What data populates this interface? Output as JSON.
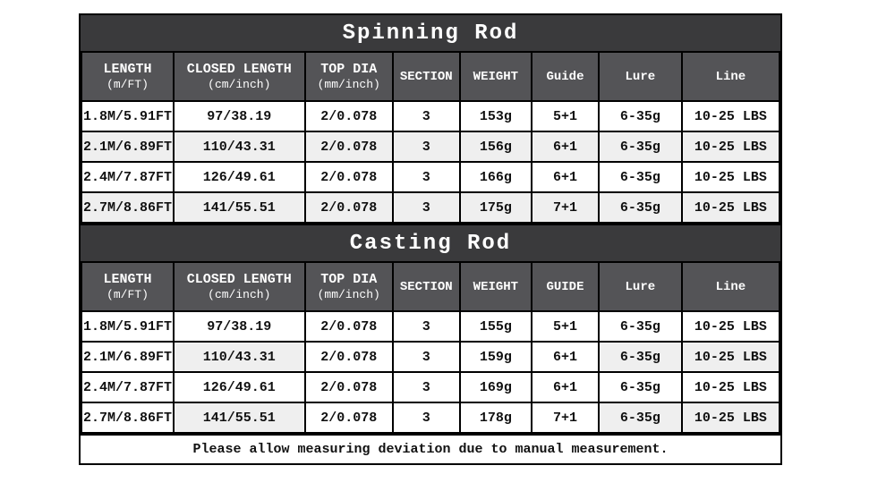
{
  "colors": {
    "title_bar_bg": "#3a3a3c",
    "header_row_bg": "#545457",
    "stripe_bg": "#efefef",
    "border": "#000000",
    "title_text": "#ffffff",
    "cell_text": "#111111"
  },
  "tables": [
    {
      "title": "Spinning Rod",
      "columns": [
        {
          "line1": "LENGTH",
          "line2": "(m/FT)"
        },
        {
          "line1": "CLOSED LENGTH",
          "line2": "(cm/inch)"
        },
        {
          "line1": "TOP DIA",
          "line2": "(mm/inch)"
        },
        {
          "line1": "SECTION",
          "line2": ""
        },
        {
          "line1": "WEIGHT",
          "line2": ""
        },
        {
          "line1": "Guide",
          "line2": ""
        },
        {
          "line1": "Lure",
          "line2": ""
        },
        {
          "line1": "Line",
          "line2": ""
        }
      ],
      "rows": [
        {
          "cells": [
            "1.8M/5.91FT",
            "97/38.19",
            "2/0.078",
            "3",
            "153g",
            "5+1",
            "6-35g",
            "10-25 LBS"
          ],
          "shaded": [
            false,
            false,
            false,
            false,
            false,
            false,
            false,
            false
          ]
        },
        {
          "cells": [
            "2.1M/6.89FT",
            "110/43.31",
            "2/0.078",
            "3",
            "156g",
            "6+1",
            "6-35g",
            "10-25 LBS"
          ],
          "shaded": [
            true,
            true,
            true,
            true,
            true,
            true,
            true,
            true
          ]
        },
        {
          "cells": [
            "2.4M/7.87FT",
            "126/49.61",
            "2/0.078",
            "3",
            "166g",
            "6+1",
            "6-35g",
            "10-25 LBS"
          ],
          "shaded": [
            false,
            false,
            false,
            false,
            false,
            false,
            false,
            false
          ]
        },
        {
          "cells": [
            "2.7M/8.86FT",
            "141/55.51",
            "2/0.078",
            "3",
            "175g",
            "7+1",
            "6-35g",
            "10-25 LBS"
          ],
          "shaded": [
            true,
            true,
            true,
            true,
            true,
            true,
            true,
            true
          ]
        }
      ]
    },
    {
      "title": "Casting Rod",
      "columns": [
        {
          "line1": "LENGTH",
          "line2": "(m/FT)"
        },
        {
          "line1": "CLOSED LENGTH",
          "line2": "(cm/inch)"
        },
        {
          "line1": "TOP DIA",
          "line2": "(mm/inch)"
        },
        {
          "line1": "SECTION",
          "line2": ""
        },
        {
          "line1": "WEIGHT",
          "line2": ""
        },
        {
          "line1": "GUIDE",
          "line2": ""
        },
        {
          "line1": "Lure",
          "line2": ""
        },
        {
          "line1": "Line",
          "line2": ""
        }
      ],
      "rows": [
        {
          "cells": [
            "1.8M/5.91FT",
            "97/38.19",
            "2/0.078",
            "3",
            "155g",
            "5+1",
            "6-35g",
            "10-25 LBS"
          ],
          "shaded": [
            false,
            false,
            false,
            false,
            false,
            false,
            false,
            false
          ]
        },
        {
          "cells": [
            "2.1M/6.89FT",
            "110/43.31",
            "2/0.078",
            "3",
            "159g",
            "6+1",
            "6-35g",
            "10-25 LBS"
          ],
          "shaded": [
            false,
            true,
            false,
            false,
            false,
            false,
            true,
            true
          ]
        },
        {
          "cells": [
            "2.4M/7.87FT",
            "126/49.61",
            "2/0.078",
            "3",
            "169g",
            "6+1",
            "6-35g",
            "10-25 LBS"
          ],
          "shaded": [
            false,
            false,
            false,
            false,
            false,
            false,
            false,
            false
          ]
        },
        {
          "cells": [
            "2.7M/8.86FT",
            "141/55.51",
            "2/0.078",
            "3",
            "178g",
            "7+1",
            "6-35g",
            "10-25 LBS"
          ],
          "shaded": [
            false,
            true,
            false,
            false,
            false,
            false,
            true,
            true
          ]
        }
      ]
    }
  ],
  "footer": {
    "note": "Please allow measuring deviation due to manual measurement."
  }
}
